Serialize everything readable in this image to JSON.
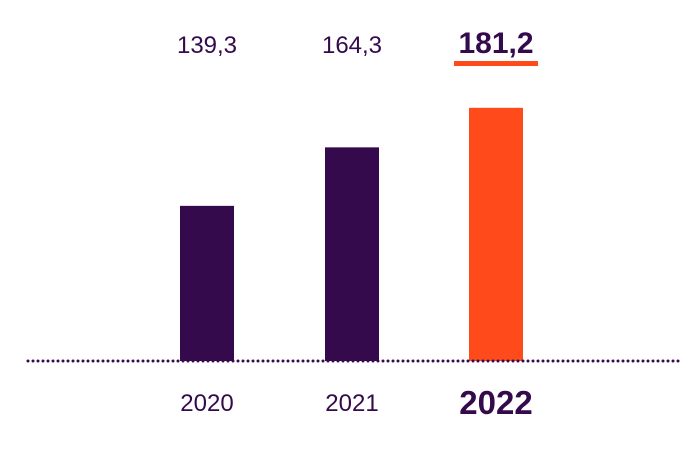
{
  "chart_data": {
    "type": "bar",
    "categories": [
      "2020",
      "2021",
      "2022"
    ],
    "values": [
      139.3,
      164.3,
      181.2
    ],
    "value_labels": [
      "139,3",
      "164,3",
      "181,2"
    ],
    "highlight_index": 2,
    "colors": {
      "bar": "#340a4d",
      "highlight": "#ff4a1c",
      "text": "#340a4d",
      "baseline": "#340a4d"
    }
  }
}
